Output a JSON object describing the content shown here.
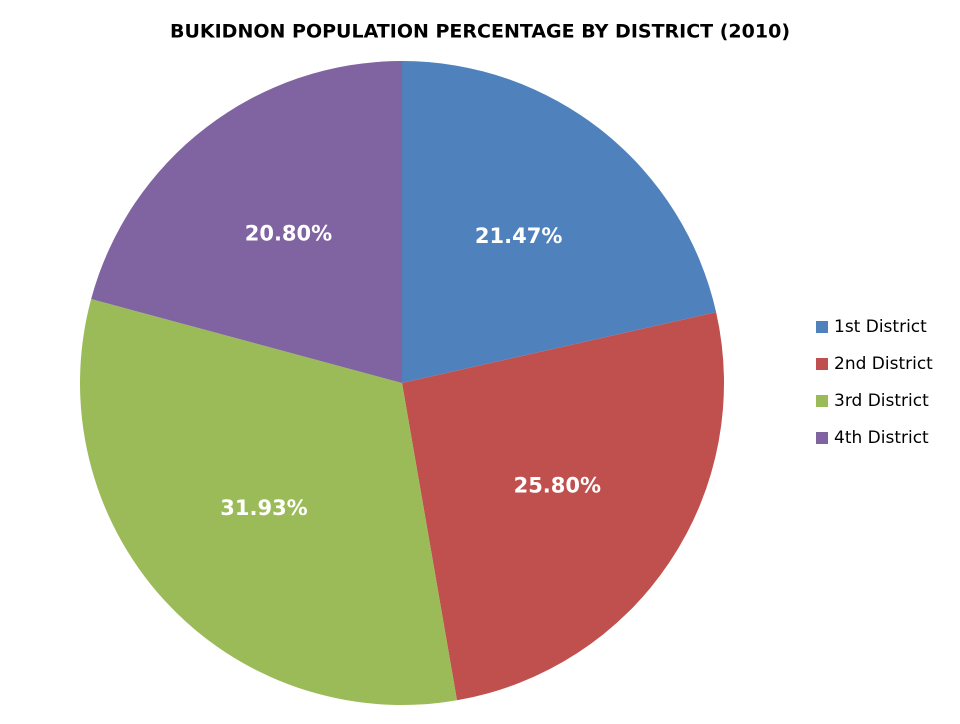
{
  "chart_data": {
    "type": "pie",
    "title": "BUKIDNON POPULATION PERCENTAGE BY DISTRICT (2010)",
    "categories": [
      "1st District",
      "2nd District",
      "3rd District",
      "4th District"
    ],
    "values": [
      21.47,
      25.8,
      31.93,
      20.8
    ],
    "value_labels": [
      "21.47%",
      "25.80%",
      "31.93%",
      "20.80%"
    ],
    "colors": [
      "#4f81bd",
      "#c0504d",
      "#9bbb59",
      "#8064a2"
    ],
    "legend": "right"
  }
}
